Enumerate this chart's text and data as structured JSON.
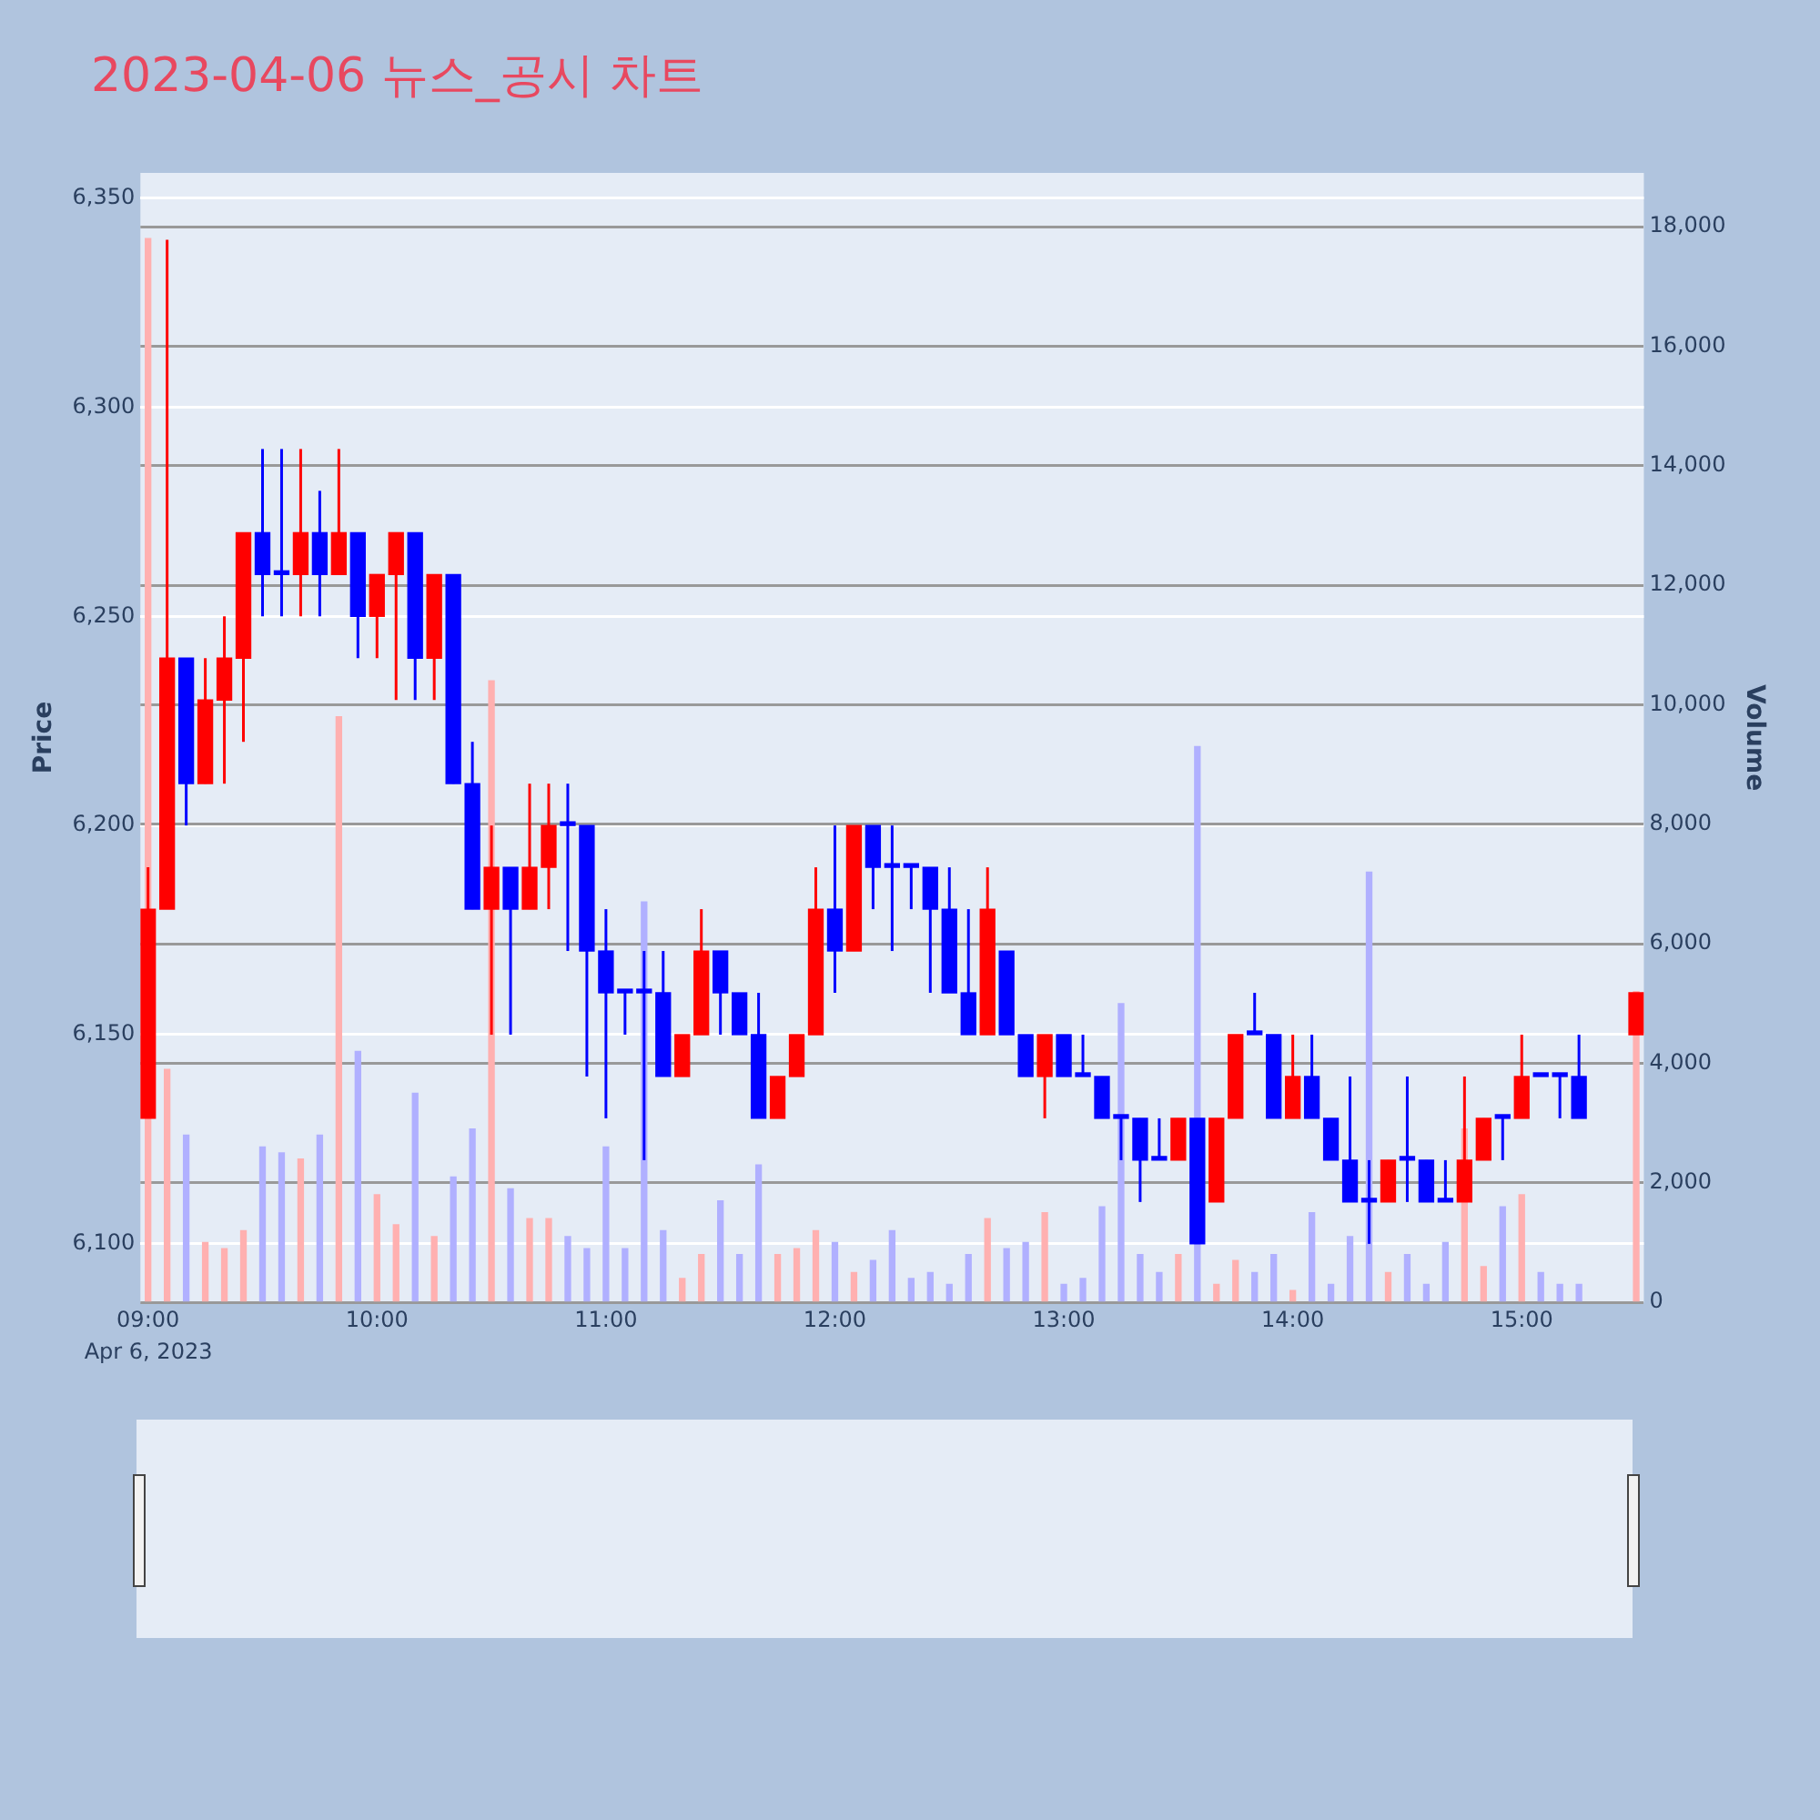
{
  "chart_data": {
    "type": "candlestick",
    "title": "2023-04-06 뉴스_공시 차트",
    "ylabel": "Price",
    "y2label": "Volume",
    "x": [
      "2023-04-06T09:00",
      "2023-04-06T09:05",
      "2023-04-06T09:10",
      "2023-04-06T09:15",
      "2023-04-06T09:20",
      "2023-04-06T09:25",
      "2023-04-06T09:30",
      "2023-04-06T09:35",
      "2023-04-06T09:40",
      "2023-04-06T09:45",
      "2023-04-06T09:50",
      "2023-04-06T09:55",
      "2023-04-06T10:00",
      "2023-04-06T10:05",
      "2023-04-06T10:10",
      "2023-04-06T10:15",
      "2023-04-06T10:20",
      "2023-04-06T10:25",
      "2023-04-06T10:30",
      "2023-04-06T10:35",
      "2023-04-06T10:40",
      "2023-04-06T10:45",
      "2023-04-06T10:50",
      "2023-04-06T10:55",
      "2023-04-06T11:00",
      "2023-04-06T11:05",
      "2023-04-06T11:10",
      "2023-04-06T11:15",
      "2023-04-06T11:20",
      "2023-04-06T11:25",
      "2023-04-06T11:30",
      "2023-04-06T11:35",
      "2023-04-06T11:40",
      "2023-04-06T11:45",
      "2023-04-06T11:50",
      "2023-04-06T11:55",
      "2023-04-06T12:00",
      "2023-04-06T12:05",
      "2023-04-06T12:10",
      "2023-04-06T12:15",
      "2023-04-06T12:20",
      "2023-04-06T12:25",
      "2023-04-06T12:30",
      "2023-04-06T12:35",
      "2023-04-06T12:40",
      "2023-04-06T12:45",
      "2023-04-06T12:50",
      "2023-04-06T12:55",
      "2023-04-06T13:00",
      "2023-04-06T13:05",
      "2023-04-06T13:10",
      "2023-04-06T13:15",
      "2023-04-06T13:20",
      "2023-04-06T13:25",
      "2023-04-06T13:30",
      "2023-04-06T13:35",
      "2023-04-06T13:40",
      "2023-04-06T13:45",
      "2023-04-06T13:50",
      "2023-04-06T13:55",
      "2023-04-06T14:00",
      "2023-04-06T14:05",
      "2023-04-06T14:10",
      "2023-04-06T14:15",
      "2023-04-06T14:20",
      "2023-04-06T14:25",
      "2023-04-06T14:30",
      "2023-04-06T14:35",
      "2023-04-06T14:40",
      "2023-04-06T14:45",
      "2023-04-06T14:50",
      "2023-04-06T14:55",
      "2023-04-06T15:00",
      "2023-04-06T15:05",
      "2023-04-06T15:10",
      "2023-04-06T15:15",
      "2023-04-06T15:30"
    ],
    "ohlc": [
      [
        6130,
        6190,
        6130,
        6180
      ],
      [
        6180,
        6340,
        6180,
        6240
      ],
      [
        6240,
        6240,
        6200,
        6210
      ],
      [
        6210,
        6240,
        6210,
        6230
      ],
      [
        6230,
        6250,
        6210,
        6240
      ],
      [
        6240,
        6270,
        6220,
        6270
      ],
      [
        6270,
        6290,
        6250,
        6260
      ],
      [
        6260,
        6290,
        6250,
        6260
      ],
      [
        6260,
        6290,
        6250,
        6270
      ],
      [
        6270,
        6280,
        6250,
        6260
      ],
      [
        6260,
        6290,
        6260,
        6270
      ],
      [
        6270,
        6270,
        6240,
        6250
      ],
      [
        6250,
        6260,
        6240,
        6260
      ],
      [
        6260,
        6270,
        6230,
        6270
      ],
      [
        6270,
        6270,
        6230,
        6240
      ],
      [
        6240,
        6260,
        6230,
        6260
      ],
      [
        6260,
        6260,
        6210,
        6210
      ],
      [
        6210,
        6220,
        6180,
        6180
      ],
      [
        6180,
        6200,
        6150,
        6190
      ],
      [
        6190,
        6190,
        6150,
        6180
      ],
      [
        6180,
        6210,
        6180,
        6190
      ],
      [
        6190,
        6210,
        6180,
        6200
      ],
      [
        6200,
        6210,
        6170,
        6200
      ],
      [
        6200,
        6200,
        6140,
        6170
      ],
      [
        6170,
        6180,
        6130,
        6160
      ],
      [
        6160,
        6160,
        6150,
        6160
      ],
      [
        6160,
        6170,
        6120,
        6160
      ],
      [
        6160,
        6170,
        6140,
        6140
      ],
      [
        6140,
        6150,
        6140,
        6150
      ],
      [
        6150,
        6180,
        6150,
        6170
      ],
      [
        6170,
        6170,
        6150,
        6160
      ],
      [
        6160,
        6160,
        6150,
        6150
      ],
      [
        6150,
        6160,
        6130,
        6130
      ],
      [
        6130,
        6140,
        6130,
        6140
      ],
      [
        6140,
        6150,
        6140,
        6150
      ],
      [
        6150,
        6190,
        6150,
        6180
      ],
      [
        6180,
        6200,
        6160,
        6170
      ],
      [
        6170,
        6200,
        6170,
        6200
      ],
      [
        6200,
        6200,
        6180,
        6190
      ],
      [
        6190,
        6200,
        6170,
        6190
      ],
      [
        6190,
        6190,
        6180,
        6190
      ],
      [
        6190,
        6190,
        6160,
        6180
      ],
      [
        6180,
        6190,
        6160,
        6160
      ],
      [
        6160,
        6180,
        6150,
        6150
      ],
      [
        6150,
        6190,
        6150,
        6180
      ],
      [
        6170,
        6170,
        6150,
        6150
      ],
      [
        6150,
        6150,
        6140,
        6140
      ],
      [
        6140,
        6150,
        6130,
        6150
      ],
      [
        6150,
        6150,
        6140,
        6140
      ],
      [
        6140,
        6150,
        6140,
        6140
      ],
      [
        6140,
        6140,
        6130,
        6130
      ],
      [
        6130,
        6130,
        6120,
        6130
      ],
      [
        6130,
        6130,
        6110,
        6120
      ],
      [
        6120,
        6130,
        6120,
        6120
      ],
      [
        6120,
        6130,
        6120,
        6130
      ],
      [
        6130,
        6130,
        6100,
        6100
      ],
      [
        6110,
        6130,
        6110,
        6130
      ],
      [
        6130,
        6150,
        6130,
        6150
      ],
      [
        6150,
        6160,
        6150,
        6150
      ],
      [
        6150,
        6150,
        6130,
        6130
      ],
      [
        6130,
        6150,
        6130,
        6140
      ],
      [
        6140,
        6150,
        6130,
        6130
      ],
      [
        6130,
        6130,
        6120,
        6120
      ],
      [
        6120,
        6140,
        6110,
        6110
      ],
      [
        6110,
        6120,
        6100,
        6110
      ],
      [
        6110,
        6120,
        6110,
        6120
      ],
      [
        6120,
        6140,
        6110,
        6120
      ],
      [
        6120,
        6120,
        6110,
        6110
      ],
      [
        6110,
        6120,
        6110,
        6110
      ],
      [
        6110,
        6140,
        6110,
        6120
      ],
      [
        6120,
        6130,
        6120,
        6130
      ],
      [
        6130,
        6130,
        6120,
        6130
      ],
      [
        6130,
        6150,
        6130,
        6140
      ],
      [
        6140,
        6140,
        6140,
        6140
      ],
      [
        6140,
        6140,
        6130,
        6140
      ],
      [
        6140,
        6150,
        6130,
        6130
      ],
      [
        6150,
        6160,
        6150,
        6160
      ]
    ],
    "colors": [
      "#ff0000",
      "#ff0000",
      "#0000ff",
      "#ff0000",
      "#ff0000",
      "#ff0000",
      "#0000ff",
      "#0000ff",
      "#ff0000",
      "#0000ff",
      "#ff0000",
      "#0000ff",
      "#ff0000",
      "#ff0000",
      "#0000ff",
      "#ff0000",
      "#0000ff",
      "#0000ff",
      "#ff0000",
      "#0000ff",
      "#ff0000",
      "#ff0000",
      "#0000ff",
      "#0000ff",
      "#0000ff",
      "#0000ff",
      "#0000ff",
      "#0000ff",
      "#ff0000",
      "#ff0000",
      "#0000ff",
      "#0000ff",
      "#0000ff",
      "#ff0000",
      "#ff0000",
      "#ff0000",
      "#0000ff",
      "#ff0000",
      "#0000ff",
      "#0000ff",
      "#0000ff",
      "#0000ff",
      "#0000ff",
      "#0000ff",
      "#ff0000",
      "#0000ff",
      "#0000ff",
      "#ff0000",
      "#0000ff",
      "#0000ff",
      "#0000ff",
      "#0000ff",
      "#0000ff",
      "#0000ff",
      "#ff0000",
      "#0000ff",
      "#ff0000",
      "#ff0000",
      "#0000ff",
      "#0000ff",
      "#ff0000",
      "#0000ff",
      "#0000ff",
      "#0000ff",
      "#0000ff",
      "#ff0000",
      "#0000ff",
      "#0000ff",
      "#0000ff",
      "#ff0000",
      "#ff0000",
      "#0000ff",
      "#ff0000",
      "#0000ff",
      "#0000ff",
      "#0000ff",
      "#ff0000"
    ],
    "series": [
      {
        "type": "bar",
        "axis": "y2",
        "values": [
          17800,
          3900,
          2800,
          1000,
          900,
          1200,
          2600,
          2500,
          2400,
          2800,
          9800,
          4200,
          1800,
          1300,
          3500,
          1100,
          2100,
          2900,
          10400,
          1900,
          1400,
          1400,
          1100,
          900,
          2600,
          900,
          6700,
          1200,
          400,
          800,
          1700,
          800,
          2300,
          800,
          900,
          1200,
          1000,
          500,
          700,
          1200,
          400,
          500,
          300,
          800,
          1400,
          900,
          1000,
          1500,
          300,
          400,
          1600,
          5000,
          800,
          500,
          800,
          9300,
          300,
          700,
          500,
          800,
          200,
          1500,
          300,
          1100,
          7200,
          500,
          800,
          300,
          1000,
          2900,
          600,
          1600,
          1800,
          500,
          300,
          300,
          5200
        ],
        "colors": [
          "#ffb0b0",
          "#ffb0b0",
          "#b0b0ff",
          "#ffb0b0",
          "#ffb0b0",
          "#ffb0b0",
          "#b0b0ff",
          "#b0b0ff",
          "#ffb0b0",
          "#b0b0ff",
          "#ffb0b0",
          "#b0b0ff",
          "#ffb0b0",
          "#ffb0b0",
          "#b0b0ff",
          "#ffb0b0",
          "#b0b0ff",
          "#b0b0ff",
          "#ffb0b0",
          "#b0b0ff",
          "#ffb0b0",
          "#ffb0b0",
          "#b0b0ff",
          "#b0b0ff",
          "#b0b0ff",
          "#b0b0ff",
          "#b0b0ff",
          "#b0b0ff",
          "#ffb0b0",
          "#ffb0b0",
          "#b0b0ff",
          "#b0b0ff",
          "#b0b0ff",
          "#ffb0b0",
          "#ffb0b0",
          "#ffb0b0",
          "#b0b0ff",
          "#ffb0b0",
          "#b0b0ff",
          "#b0b0ff",
          "#b0b0ff",
          "#b0b0ff",
          "#b0b0ff",
          "#b0b0ff",
          "#ffb0b0",
          "#b0b0ff",
          "#b0b0ff",
          "#ffb0b0",
          "#b0b0ff",
          "#b0b0ff",
          "#b0b0ff",
          "#b0b0ff",
          "#b0b0ff",
          "#b0b0ff",
          "#ffb0b0",
          "#b0b0ff",
          "#ffb0b0",
          "#ffb0b0",
          "#b0b0ff",
          "#b0b0ff",
          "#ffb0b0",
          "#b0b0ff",
          "#b0b0ff",
          "#b0b0ff",
          "#b0b0ff",
          "#ffb0b0",
          "#b0b0ff",
          "#b0b0ff",
          "#b0b0ff",
          "#ffb0b0",
          "#ffb0b0",
          "#b0b0ff",
          "#ffb0b0",
          "#b0b0ff",
          "#b0b0ff",
          "#b0b0ff",
          "#ffb0b0"
        ]
      }
    ],
    "xlim": [
      "2023-04-06T08:58",
      "2023-04-06T15:32"
    ],
    "xticks": [
      {
        "value": "2023-04-06T09:00",
        "label": "09:00"
      },
      {
        "value": "2023-04-06T10:00",
        "label": "10:00"
      },
      {
        "value": "2023-04-06T11:00",
        "label": "11:00"
      },
      {
        "value": "2023-04-06T12:00",
        "label": "12:00"
      },
      {
        "value": "2023-04-06T13:00",
        "label": "13:00"
      },
      {
        "value": "2023-04-06T14:00",
        "label": "14:00"
      },
      {
        "value": "2023-04-06T15:00",
        "label": "15:00"
      }
    ],
    "ylim": [
      6086,
      6356
    ],
    "yticks": [
      {
        "value": 6100,
        "label": "6,100"
      },
      {
        "value": 6150,
        "label": "6,150"
      },
      {
        "value": 6200,
        "label": "6,200"
      },
      {
        "value": 6250,
        "label": "6,250"
      },
      {
        "value": 6300,
        "label": "6,300"
      },
      {
        "value": 6350,
        "label": "6,350"
      }
    ],
    "y2lim": [
      0,
      18900
    ],
    "y2ticks": [
      0,
      {
        "value": 2000,
        "label": "2,000"
      },
      {
        "value": 4000,
        "label": "4,000"
      },
      {
        "value": 6000,
        "label": "6,000"
      },
      {
        "value": 8000,
        "label": "8,000"
      },
      {
        "value": 10000,
        "label": "10,000"
      },
      {
        "value": 12000,
        "label": "12,000"
      },
      {
        "value": 14000,
        "label": "14,000"
      },
      {
        "value": 16000,
        "label": "16,000"
      },
      {
        "value": 18000,
        "label": "18,000"
      }
    ],
    "grid": "y",
    "annotations": [
      "Apr 6, 2023"
    ]
  }
}
